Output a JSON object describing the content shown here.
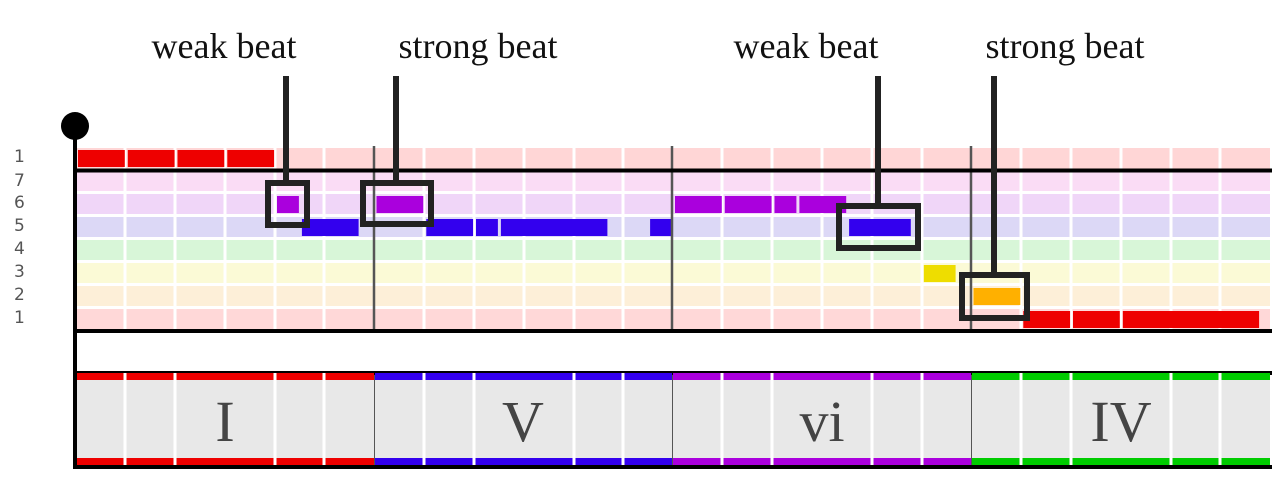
{
  "annotations": [
    {
      "label": "weak beat"
    },
    {
      "label": "strong beat"
    },
    {
      "label": "weak beat"
    },
    {
      "label": "strong beat"
    }
  ],
  "scale_degrees": [
    "1",
    "7",
    "6",
    "5",
    "4",
    "3",
    "2",
    "1"
  ],
  "chords": [
    {
      "label": "I",
      "color": "#ee0000"
    },
    {
      "label": "V",
      "color": "#3300ee"
    },
    {
      "label": "vi",
      "color": "#aa00dd"
    },
    {
      "label": "IV",
      "color": "#00cc00"
    }
  ],
  "beats_per_measure": 6,
  "notes": [
    {
      "degree": "1 (upper)",
      "start_beat": 0,
      "beats": 1,
      "color": "#ee0000"
    },
    {
      "degree": "1 (upper)",
      "start_beat": 1,
      "beats": 1,
      "color": "#ee0000"
    },
    {
      "degree": "1 (upper)",
      "start_beat": 2,
      "beats": 1,
      "color": "#ee0000"
    },
    {
      "degree": "1 (upper)",
      "start_beat": 3,
      "beats": 1,
      "color": "#ee0000"
    },
    {
      "degree": "6",
      "start_beat": 4,
      "beats": 0.5,
      "color": "#aa00dd"
    },
    {
      "degree": "5",
      "start_beat": 4.5,
      "beats": 1.2,
      "color": "#3300ee"
    },
    {
      "degree": "6",
      "start_beat": 6,
      "beats": 1,
      "color": "#aa00dd"
    },
    {
      "degree": "5",
      "start_beat": 7,
      "beats": 1,
      "color": "#3300ee"
    },
    {
      "degree": "5",
      "start_beat": 8,
      "beats": 0.5,
      "color": "#3300ee"
    },
    {
      "degree": "5",
      "start_beat": 8.5,
      "beats": 2.2,
      "color": "#3300ee"
    },
    {
      "degree": "5",
      "start_beat": 11.5,
      "beats": 0.5,
      "color": "#3300ee"
    },
    {
      "degree": "6",
      "start_beat": 12,
      "beats": 1,
      "color": "#aa00dd"
    },
    {
      "degree": "6",
      "start_beat": 13,
      "beats": 1,
      "color": "#aa00dd"
    },
    {
      "degree": "6",
      "start_beat": 14,
      "beats": 0.5,
      "color": "#aa00dd"
    },
    {
      "degree": "6",
      "start_beat": 14.5,
      "beats": 1,
      "color": "#aa00dd"
    },
    {
      "degree": "5",
      "start_beat": 15.5,
      "beats": 1.3,
      "color": "#3300ee"
    },
    {
      "degree": "3",
      "start_beat": 17,
      "beats": 0.7,
      "color": "#eedd00"
    },
    {
      "degree": "2",
      "start_beat": 18,
      "beats": 1,
      "color": "#ffb000"
    },
    {
      "degree": "1",
      "start_beat": 19,
      "beats": 1,
      "color": "#ee0000"
    },
    {
      "degree": "1",
      "start_beat": 20,
      "beats": 1,
      "color": "#ee0000"
    },
    {
      "degree": "1",
      "start_beat": 21,
      "beats": 2.8,
      "color": "#ee0000"
    }
  ],
  "colors": {
    "row_1_upper": "#ffd6d6",
    "row_7": "#fadcf5",
    "row_6": "#f0d6f8",
    "row_5": "#dcd8f6",
    "row_4": "#d8f6d8",
    "row_3": "#fbfad6",
    "row_2": "#fdefd8",
    "row_1": "#ffd8d8",
    "chord_background": "#e8e8e8"
  }
}
